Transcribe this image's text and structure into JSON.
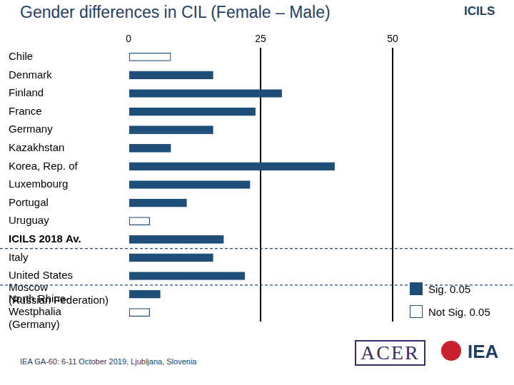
{
  "chart_data": {
    "type": "bar",
    "orientation": "horizontal",
    "title": "Gender differences in CIL (Female – Male)",
    "categories": [
      "Chile",
      "Denmark",
      "Finland",
      "France",
      "Germany",
      "Kazakhstan",
      "Korea, Rep. of",
      "Luxembourg",
      "Portugal",
      "Uruguay",
      "ICILS 2018 Av.",
      "Italy",
      "United States",
      "Moscow (Russian Federation)",
      "North Rhine-Westphalia (Germany)"
    ],
    "series": [
      {
        "name": "Sig. 0.05",
        "color": "#1f4e79",
        "values": [
          null,
          16,
          29,
          24,
          16,
          8,
          39,
          23,
          11,
          null,
          18,
          16,
          22,
          6,
          null
        ]
      },
      {
        "name": "Not Sig. 0.05",
        "color": "#ffffff",
        "values": [
          8,
          null,
          null,
          null,
          null,
          null,
          null,
          null,
          null,
          4,
          null,
          null,
          null,
          null,
          4
        ]
      }
    ],
    "xlim": [
      0,
      50
    ],
    "xticks": [
      0,
      25,
      50
    ],
    "grid": true,
    "legend": "lower right",
    "footer": "IEA GA-60: 6-11 October 2019, Ljubljana, Slovenia",
    "logos": [
      "ICILS",
      "ACER",
      "IEA"
    ]
  }
}
